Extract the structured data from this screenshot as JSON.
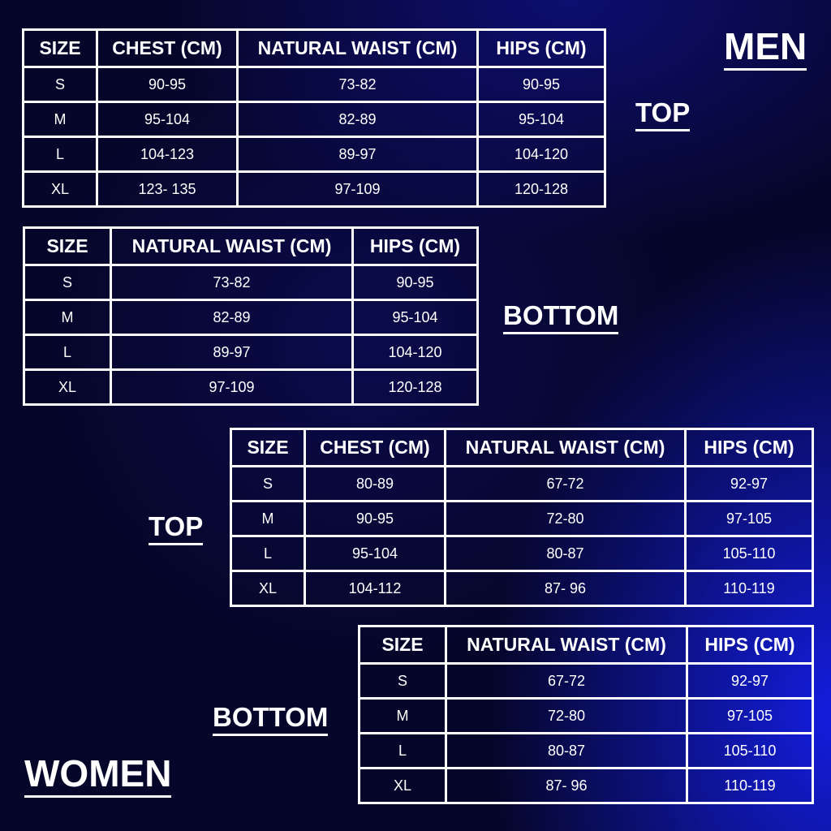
{
  "men": {
    "title": "MEN",
    "top": {
      "label": "TOP",
      "headers": [
        "SIZE",
        "CHEST (CM)",
        "NATURAL WAIST (CM)",
        "HIPS (CM)"
      ],
      "rows": [
        [
          "S",
          "90-95",
          "73-82",
          "90-95"
        ],
        [
          "M",
          "95-104",
          "82-89",
          "95-104"
        ],
        [
          "L",
          "104-123",
          "89-97",
          "104-120"
        ],
        [
          "XL",
          "123- 135",
          "97-109",
          "120-128"
        ]
      ]
    },
    "bottom": {
      "label": "BOTTOM",
      "headers": [
        "SIZE",
        "NATURAL WAIST (CM)",
        "HIPS (CM)"
      ],
      "rows": [
        [
          "S",
          "73-82",
          "90-95"
        ],
        [
          "M",
          "82-89",
          "95-104"
        ],
        [
          "L",
          "89-97",
          "104-120"
        ],
        [
          "XL",
          "97-109",
          "120-128"
        ]
      ]
    }
  },
  "women": {
    "title": "WOMEN",
    "top": {
      "label": "TOP",
      "headers": [
        "SIZE",
        "CHEST (CM)",
        "NATURAL WAIST (CM)",
        "HIPS (CM)"
      ],
      "rows": [
        [
          "S",
          "80-89",
          "67-72",
          "92-97"
        ],
        [
          "M",
          "90-95",
          "72-80",
          "97-105"
        ],
        [
          "L",
          "95-104",
          "80-87",
          "105-110"
        ],
        [
          "XL",
          "104-112",
          "87- 96",
          "110-119"
        ]
      ]
    },
    "bottom": {
      "label": "BOTTOM",
      "headers": [
        "SIZE",
        "NATURAL WAIST (CM)",
        "HIPS (CM)"
      ],
      "rows": [
        [
          "S",
          "67-72",
          "92-97"
        ],
        [
          "M",
          "72-80",
          "97-105"
        ],
        [
          "L",
          "80-87",
          "105-110"
        ],
        [
          "XL",
          "87- 96",
          "110-119"
        ]
      ]
    }
  }
}
